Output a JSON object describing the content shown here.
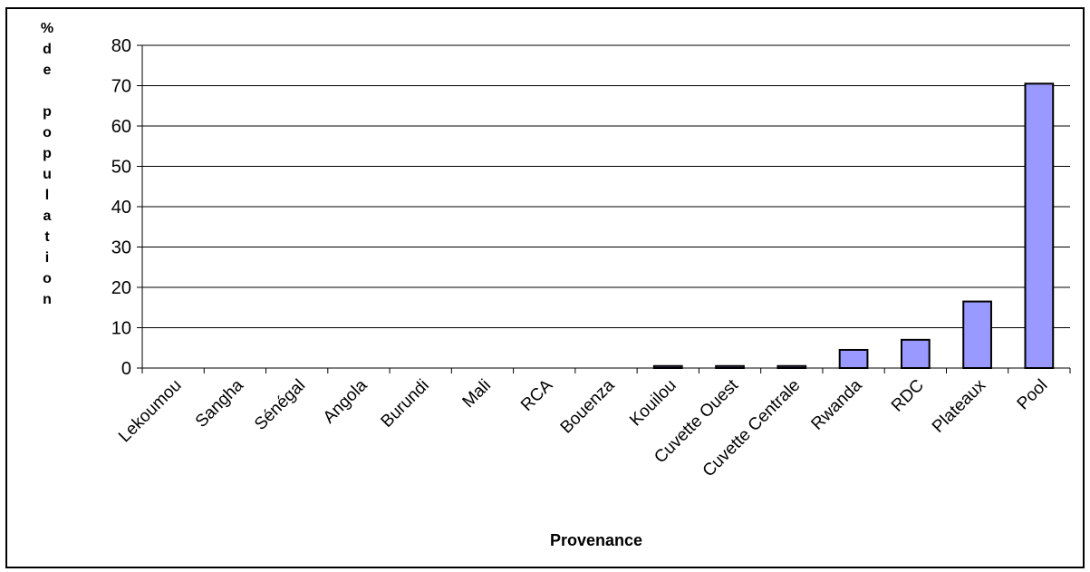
{
  "chart_data": {
    "type": "bar",
    "title": "",
    "xlabel": "Provenance",
    "ylabel": "% de population",
    "ylabel_lines": [
      "%",
      "d",
      "e",
      "",
      "p",
      "o",
      "p",
      "u",
      "l",
      "a",
      "t",
      "i",
      "o",
      "n"
    ],
    "categories": [
      "Lekoumou",
      "Sangha",
      "Sénégal",
      "Angola",
      "Burundi",
      "Mali",
      "RCA",
      "Bouenza",
      "Kouilou",
      "Cuvette Ouest",
      "Cuvette Centrale",
      "Rwanda",
      "RDC",
      "Plateaux",
      "Pool"
    ],
    "values": [
      0,
      0,
      0,
      0,
      0,
      0,
      0,
      0,
      0.5,
      0.5,
      0.5,
      4.5,
      7,
      16.5,
      70.5
    ],
    "ylim": [
      0,
      80
    ],
    "yticks": [
      0,
      10,
      20,
      30,
      40,
      50,
      60,
      70,
      80
    ],
    "grid": true,
    "legend": "none",
    "bar_color": "#9999ff",
    "bar_stroke": "#000000"
  }
}
